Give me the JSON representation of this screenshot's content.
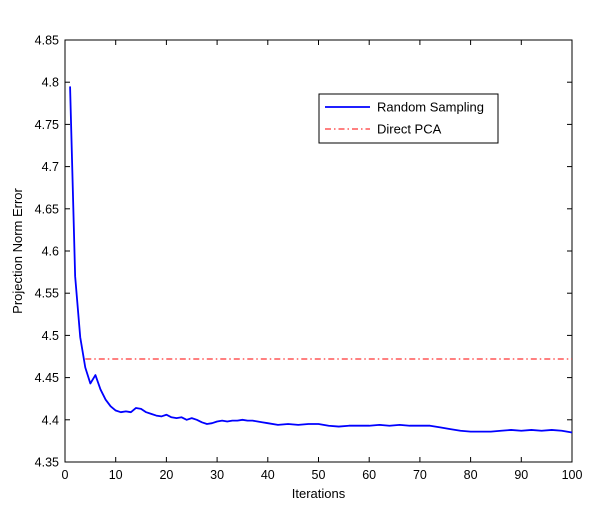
{
  "chart_data": {
    "type": "line",
    "xlabel": "Iterations",
    "ylabel": "Projection Norm Error",
    "xlim": [
      0,
      100
    ],
    "ylim": [
      4.35,
      4.85
    ],
    "xticks": [
      0,
      10,
      20,
      30,
      40,
      50,
      60,
      70,
      80,
      90,
      100
    ],
    "xtick_labels": [
      "0",
      "10",
      "20",
      "30",
      "40",
      "50",
      "60",
      "70",
      "80",
      "90",
      "100"
    ],
    "yticks": [
      4.35,
      4.4,
      4.45,
      4.5,
      4.55,
      4.6,
      4.65,
      4.7,
      4.75,
      4.8,
      4.85
    ],
    "ytick_labels": [
      "4.35",
      "4.4",
      "4.45",
      "4.5",
      "4.55",
      "4.6",
      "4.65",
      "4.7",
      "4.75",
      "4.8",
      "4.85"
    ],
    "grid": false,
    "legend_position": "top-right",
    "series": [
      {
        "name": "Random Sampling",
        "color": "#0000ff",
        "style": "solid",
        "x": [
          1,
          2,
          3,
          4,
          5,
          6,
          7,
          8,
          9,
          10,
          11,
          12,
          13,
          14,
          15,
          16,
          17,
          18,
          19,
          20,
          21,
          22,
          23,
          24,
          25,
          26,
          27,
          28,
          29,
          30,
          31,
          32,
          33,
          34,
          35,
          36,
          37,
          38,
          39,
          40,
          42,
          44,
          46,
          48,
          50,
          52,
          54,
          56,
          58,
          60,
          62,
          64,
          66,
          68,
          70,
          72,
          74,
          76,
          78,
          80,
          82,
          84,
          86,
          88,
          90,
          92,
          94,
          96,
          98,
          100
        ],
        "y": [
          4.795,
          4.57,
          4.498,
          4.462,
          4.443,
          4.453,
          4.436,
          4.424,
          4.416,
          4.411,
          4.409,
          4.41,
          4.409,
          4.414,
          4.413,
          4.409,
          4.407,
          4.405,
          4.404,
          4.406,
          4.403,
          4.402,
          4.403,
          4.4,
          4.402,
          4.4,
          4.397,
          4.395,
          4.396,
          4.398,
          4.399,
          4.398,
          4.399,
          4.399,
          4.4,
          4.399,
          4.399,
          4.398,
          4.397,
          4.396,
          4.394,
          4.395,
          4.394,
          4.395,
          4.395,
          4.393,
          4.392,
          4.393,
          4.393,
          4.393,
          4.394,
          4.393,
          4.394,
          4.393,
          4.393,
          4.393,
          4.391,
          4.389,
          4.387,
          4.386,
          4.386,
          4.386,
          4.387,
          4.388,
          4.387,
          4.388,
          4.387,
          4.388,
          4.387,
          4.385
        ]
      },
      {
        "name": "Direct PCA",
        "color": "#ff0000",
        "style": "dash-dot",
        "x": [
          4,
          100
        ],
        "y": [
          4.472,
          4.472
        ]
      }
    ]
  }
}
